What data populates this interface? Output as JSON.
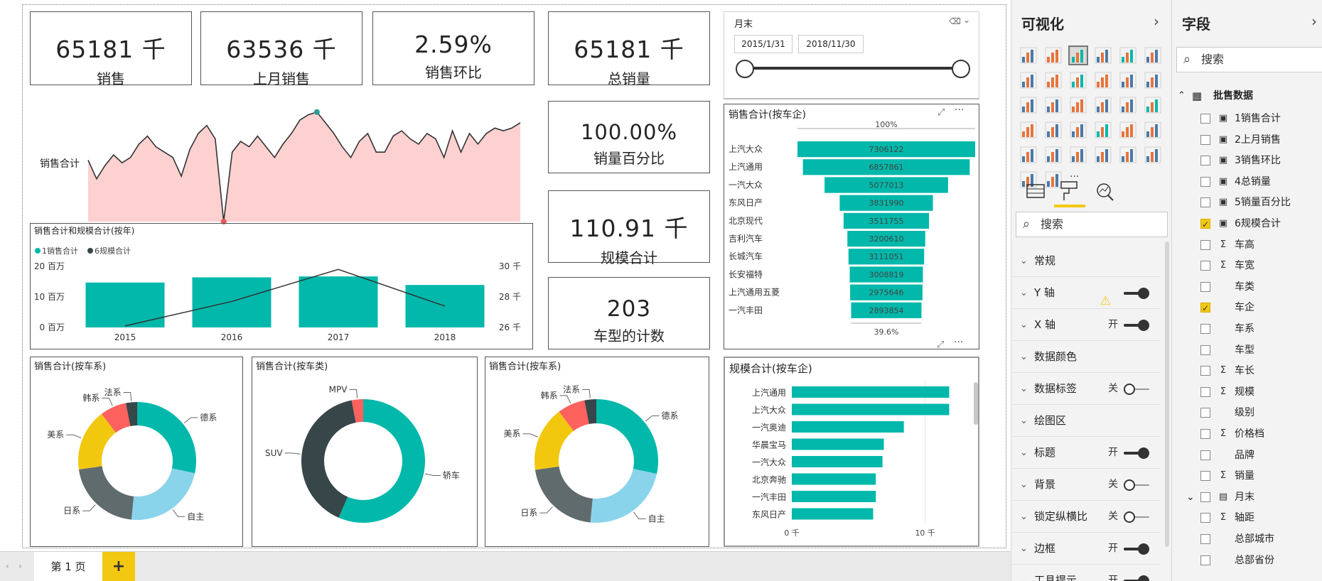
{
  "cards": [
    {
      "value": "65181 千",
      "label": "销售"
    },
    {
      "value": "63536 千",
      "label": "上月销售"
    },
    {
      "value": "2.59%",
      "label": "销售环比"
    },
    {
      "value": "65181 千",
      "label": "总销量"
    },
    {
      "value": "100.00%",
      "label": "销量百分比"
    },
    {
      "value": "110.91 千",
      "label": "规模合计"
    },
    {
      "value": "203",
      "label": "车型的计数"
    }
  ],
  "slicer": {
    "title": "月末",
    "start": "2015/1/31",
    "end": "2018/11/30"
  },
  "sparkline": {
    "label": "销售合计"
  },
  "combo": {
    "title": "销售合计和规模合计(按年)",
    "legend": [
      "1销售合计",
      "6规模合计"
    ],
    "left_ticks": [
      "20 百万",
      "10 百万",
      "0 百万"
    ],
    "right_ticks": [
      "30 千",
      "28 千",
      "26 千"
    ]
  },
  "funnel_title": "销售合计(按车企)",
  "funnel_top_label": "100%",
  "funnel_bottom_label": "39.6%",
  "hbar_title": "规模合计(按车企)",
  "hbar_axis": [
    "0 千",
    "10 千"
  ],
  "donut1_title": "销售合计(按车系)",
  "donut2_title": "销售合计(按车类)",
  "donut3_title": "销售合计(按车系)",
  "chart_data": [
    {
      "type": "line",
      "title": "销售合计",
      "values": [
        2.3,
        1.6,
        2.1,
        2.5,
        2.2,
        2.4,
        2.9,
        3.2,
        2.8,
        2.6,
        2.4,
        1.7,
        2.7,
        3.3,
        3.6,
        3.1,
        0.0,
        2.6,
        3.0,
        2.8,
        3.2,
        2.8,
        2.4,
        2.9,
        3.3,
        3.8,
        4.0,
        4.1,
        3.7,
        3.3,
        2.8,
        2.4,
        3.0,
        3.3,
        2.6,
        2.6,
        3.2,
        3.4,
        3.1,
        2.9,
        3.3,
        3.1,
        2.4,
        3.4,
        2.6,
        3.3,
        2.9,
        3.3,
        3.5,
        3.4,
        3.5,
        3.7
      ],
      "max_marker_index": 27,
      "min_marker_index": 16
    },
    {
      "type": "bar",
      "title": "销售合计和规模合计(按年)",
      "categories": [
        "2015",
        "2016",
        "2017",
        "2018"
      ],
      "series": [
        {
          "name": "1销售合计",
          "type": "bar",
          "axis": "left",
          "values": [
            14.7,
            16.4,
            16.7,
            13.9
          ]
        },
        {
          "name": "6规模合计",
          "type": "line",
          "axis": "right",
          "values": [
            26.1,
            27.7,
            29.8,
            27.4
          ]
        }
      ],
      "ylim_left": [
        0,
        20
      ],
      "ylim_right": [
        26,
        30
      ]
    },
    {
      "type": "bar",
      "subtype": "funnel",
      "title": "销售合计(按车企)",
      "categories": [
        "上汽大众",
        "上汽通用",
        "一汽大众",
        "东风日产",
        "北京现代",
        "吉利汽车",
        "长城汽车",
        "长安福特",
        "上汽通用五菱",
        "一汽丰田"
      ],
      "values": [
        7306122,
        6857861,
        5077013,
        3831990,
        3511755,
        3200610,
        3111051,
        3008819,
        2975646,
        2893854
      ]
    },
    {
      "type": "bar",
      "orientation": "horizontal",
      "title": "规模合计(按车企)",
      "categories": [
        "上汽通用",
        "上汽大众",
        "一汽奥迪",
        "华晨宝马",
        "一汽大众",
        "北京奔驰",
        "一汽丰田",
        "东风日产"
      ],
      "values": [
        11.8,
        11.8,
        8.4,
        6.9,
        6.8,
        6.3,
        6.3,
        6.1
      ],
      "xlim": [
        0,
        13
      ]
    },
    {
      "type": "pie",
      "subtype": "donut",
      "title": "销售合计(按车系)",
      "labels": [
        "德系",
        "自主",
        "日系",
        "美系",
        "韩系",
        "法系"
      ],
      "values": [
        27.5,
        22.5,
        20.5,
        16.5,
        7.0,
        3.0
      ],
      "colors": [
        "#01b8aa",
        "#8ad4eb",
        "#5f6b6d",
        "#f2c80f",
        "#fd625e",
        "#374649"
      ]
    },
    {
      "type": "pie",
      "subtype": "donut",
      "title": "销售合计(按车类)",
      "labels": [
        "轿车",
        "SUV",
        "MPV"
      ],
      "values": [
        56.5,
        40.5,
        3.0
      ],
      "colors": [
        "#01b8aa",
        "#374649",
        "#fd625e"
      ]
    },
    {
      "type": "pie",
      "subtype": "donut",
      "title": "销售合计(按车系)",
      "labels": [
        "德系",
        "自主",
        "日系",
        "美系",
        "韩系",
        "法系"
      ],
      "values": [
        27.5,
        22.5,
        20.5,
        16.5,
        7.0,
        3.0
      ],
      "colors": [
        "#01b8aa",
        "#8ad4eb",
        "#5f6b6d",
        "#f2c80f",
        "#fd625e",
        "#374649"
      ]
    }
  ],
  "page_tab": "第 1 页",
  "add_tab": "+",
  "viz": {
    "title": "可视化",
    "search_placeholder": "搜索",
    "format_items": [
      {
        "label": "常规",
        "state": "",
        "toggle": "none"
      },
      {
        "label": "Y 轴",
        "state": "",
        "toggle": "on-warn"
      },
      {
        "label": "X 轴",
        "state": "开",
        "toggle": "on"
      },
      {
        "label": "数据颜色",
        "state": "",
        "toggle": "none"
      },
      {
        "label": "数据标签",
        "state": "关",
        "toggle": "off"
      },
      {
        "label": "绘图区",
        "state": "",
        "toggle": "none"
      },
      {
        "label": "标题",
        "state": "开",
        "toggle": "on"
      },
      {
        "label": "背景",
        "state": "关",
        "toggle": "off"
      },
      {
        "label": "锁定纵横比",
        "state": "关",
        "toggle": "off"
      },
      {
        "label": "边框",
        "state": "开",
        "toggle": "on"
      },
      {
        "label": "工具提示",
        "state": "开",
        "toggle": "on"
      }
    ]
  },
  "fields": {
    "title": "字段",
    "search_placeholder": "搜索",
    "table_name": "批售数据",
    "items": [
      {
        "label": "1销售合计",
        "icon": "calc",
        "checked": false
      },
      {
        "label": "2上月销售",
        "icon": "calc",
        "checked": false
      },
      {
        "label": "3销售环比",
        "icon": "calc",
        "checked": false
      },
      {
        "label": "4总销量",
        "icon": "calc",
        "checked": false
      },
      {
        "label": "5销量百分比",
        "icon": "calc",
        "checked": false
      },
      {
        "label": "6规模合计",
        "icon": "calc",
        "checked": true
      },
      {
        "label": "车高",
        "icon": "sigma",
        "checked": false
      },
      {
        "label": "车宽",
        "icon": "sigma",
        "checked": false
      },
      {
        "label": "车类",
        "icon": "",
        "checked": false
      },
      {
        "label": "车企",
        "icon": "",
        "checked": true
      },
      {
        "label": "车系",
        "icon": "",
        "checked": false
      },
      {
        "label": "车型",
        "icon": "",
        "checked": false
      },
      {
        "label": "车长",
        "icon": "sigma",
        "checked": false
      },
      {
        "label": "规模",
        "icon": "sigma",
        "checked": false
      },
      {
        "label": "级别",
        "icon": "",
        "checked": false
      },
      {
        "label": "价格档",
        "icon": "sigma",
        "checked": false
      },
      {
        "label": "品牌",
        "icon": "",
        "checked": false
      },
      {
        "label": "销量",
        "icon": "sigma",
        "checked": false
      },
      {
        "label": "月末",
        "icon": "calendar",
        "checked": false,
        "expand": true
      },
      {
        "label": "轴距",
        "icon": "sigma",
        "checked": false
      },
      {
        "label": "总部城市",
        "icon": "",
        "checked": false
      },
      {
        "label": "总部省份",
        "icon": "",
        "checked": false
      }
    ]
  }
}
